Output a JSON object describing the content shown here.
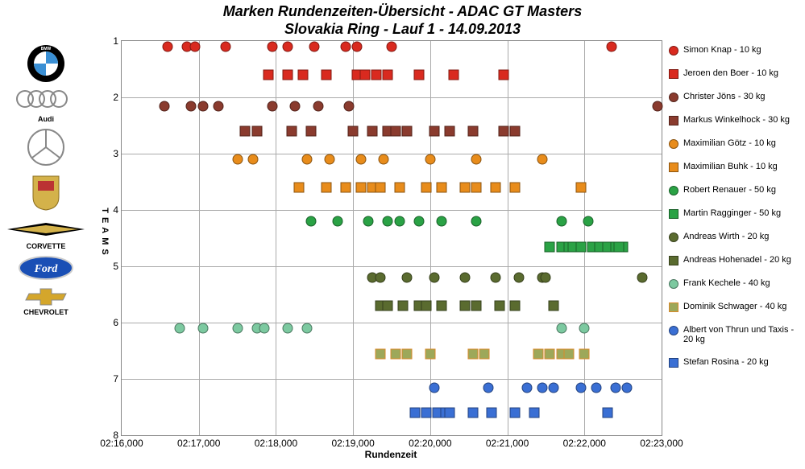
{
  "title_line1": "Marken Rundenzeiten-Übersicht - ADAC GT Masters",
  "title_line2": "Slovakia Ring - Lauf 1 - 14.09.2013",
  "title_fontsize": 18,
  "xaxis_label": "Rundenzeit",
  "yaxis_label": "TEAMS",
  "xlim": [
    136.0,
    143.0
  ],
  "ylim": [
    1,
    8
  ],
  "ytick_step": 1,
  "xtick_step": 1.0,
  "xticklabels": [
    "02:16,000",
    "02:17,000",
    "02:18,000",
    "02:19,000",
    "02:20,000",
    "02:21,000",
    "02:22,000",
    "02:23,000"
  ],
  "yticklabels": [
    "1",
    "2",
    "3",
    "4",
    "5",
    "6",
    "7",
    "8"
  ],
  "grid_color": "#aaaaaa",
  "background": "#ffffff",
  "marker_size": 11,
  "series": [
    {
      "name": "simon-knap",
      "label": "Simon Knap - 10 kg",
      "shape": "circle",
      "color": "#d92a1f",
      "y": 1.1,
      "x": [
        136.6,
        136.85,
        136.95,
        137.35,
        137.95,
        138.15,
        138.5,
        138.9,
        139.05,
        139.5,
        142.35
      ]
    },
    {
      "name": "jeroen-den-boer",
      "label": "Jeroen den Boer - 10 kg",
      "shape": "square",
      "color": "#d92a1f",
      "y": 1.6,
      "x": [
        137.9,
        138.15,
        138.35,
        138.65,
        139.05,
        139.15,
        139.3,
        139.45,
        139.85,
        140.3,
        140.95
      ]
    },
    {
      "name": "christer-jons",
      "label": "Christer Jöns - 30 kg",
      "shape": "circle",
      "color": "#8a3b2e",
      "y": 2.15,
      "x": [
        136.9,
        137.05,
        137.25,
        137.95,
        138.25,
        138.55,
        138.95,
        142.95,
        136.55
      ]
    },
    {
      "name": "markus-winkelhock",
      "label": "Markus Winkelhock - 30 kg",
      "shape": "square",
      "color": "#8a3b2e",
      "y": 2.6,
      "x": [
        137.6,
        137.75,
        138.2,
        138.45,
        139.0,
        139.25,
        139.45,
        139.55,
        139.7,
        140.05,
        140.25,
        140.55,
        140.95,
        141.1
      ]
    },
    {
      "name": "maximilian-gotz",
      "label": "Maximilian Götz - 10 kg",
      "shape": "circle",
      "color": "#e88c1b",
      "y": 3.1,
      "x": [
        137.5,
        137.7,
        138.4,
        138.7,
        139.1,
        139.4,
        140.0,
        140.6,
        141.45
      ]
    },
    {
      "name": "maximilian-buhk",
      "label": "Maximilian Buhk - 10 kg",
      "shape": "square",
      "color": "#e88c1b",
      "y": 3.6,
      "x": [
        138.3,
        138.65,
        138.9,
        139.1,
        139.25,
        139.35,
        139.6,
        139.95,
        140.15,
        140.45,
        140.6,
        140.85,
        141.1,
        141.95
      ]
    },
    {
      "name": "robert-renauer",
      "label": "Robert Renauer - 50 kg",
      "shape": "circle",
      "color": "#2aa245",
      "y": 4.2,
      "x": [
        138.45,
        138.8,
        139.2,
        139.45,
        139.6,
        139.85,
        140.15,
        140.6,
        141.7,
        142.05
      ]
    },
    {
      "name": "martin-ragginger",
      "label": "Martin Ragginger - 50 kg",
      "shape": "square",
      "color": "#2aa245",
      "y": 4.65,
      "x": [
        141.55,
        141.7,
        141.8,
        141.85,
        141.95,
        142.1,
        142.2,
        142.3,
        142.4,
        142.5,
        142.45
      ]
    },
    {
      "name": "andreas-wirth",
      "label": "Andreas Wirth - 20 kg",
      "shape": "circle",
      "color": "#5a6b2f",
      "y": 5.2,
      "x": [
        139.25,
        139.35,
        139.7,
        140.05,
        140.45,
        140.85,
        141.15,
        141.45,
        141.5,
        142.75
      ]
    },
    {
      "name": "andreas-hohenadel",
      "label": "Andreas Hohenadel - 20 kg",
      "shape": "square",
      "color": "#5a6b2f",
      "y": 5.7,
      "x": [
        139.35,
        139.45,
        139.65,
        139.85,
        139.95,
        140.15,
        140.45,
        140.6,
        140.9,
        141.1,
        141.6
      ]
    },
    {
      "name": "frank-kechele",
      "label": "Frank Kechele - 40 kg",
      "shape": "circle",
      "color": "#7cc9a0",
      "y": 6.1,
      "x": [
        136.75,
        137.05,
        137.5,
        137.75,
        137.85,
        138.15,
        138.4,
        141.7,
        142.0
      ]
    },
    {
      "name": "dominik-schwager",
      "label": "Dominik Schwager - 40 kg",
      "shape": "square",
      "color": "#9da85a",
      "border": "#d98a2b",
      "y": 6.55,
      "x": [
        139.35,
        139.55,
        139.7,
        140.0,
        140.55,
        140.7,
        141.4,
        141.55,
        141.7,
        141.8,
        142.0
      ]
    },
    {
      "name": "albert-von-thrun",
      "label": "Albert von Thrun und Taxis - 20 kg",
      "shape": "circle",
      "color": "#3a6fd4",
      "y": 7.15,
      "x": [
        140.05,
        140.75,
        141.25,
        141.45,
        141.6,
        141.95,
        142.15,
        142.4,
        142.55
      ]
    },
    {
      "name": "stefan-rosina",
      "label": "Stefan Rosina - 20 kg",
      "shape": "square",
      "color": "#3a6fd4",
      "y": 7.6,
      "x": [
        139.8,
        139.95,
        140.1,
        140.2,
        140.25,
        140.55,
        140.8,
        141.1,
        141.35,
        142.3
      ]
    }
  ],
  "logos": [
    {
      "name": "bmw",
      "label": "BMW"
    },
    {
      "name": "audi",
      "label": "Audi"
    },
    {
      "name": "mercedes",
      "label": "Mercedes"
    },
    {
      "name": "porsche",
      "label": "Porsche"
    },
    {
      "name": "corvette",
      "label": "CORVETTE"
    },
    {
      "name": "ford",
      "label": "Ford"
    },
    {
      "name": "chevrolet",
      "label": "CHEVROLET"
    }
  ]
}
